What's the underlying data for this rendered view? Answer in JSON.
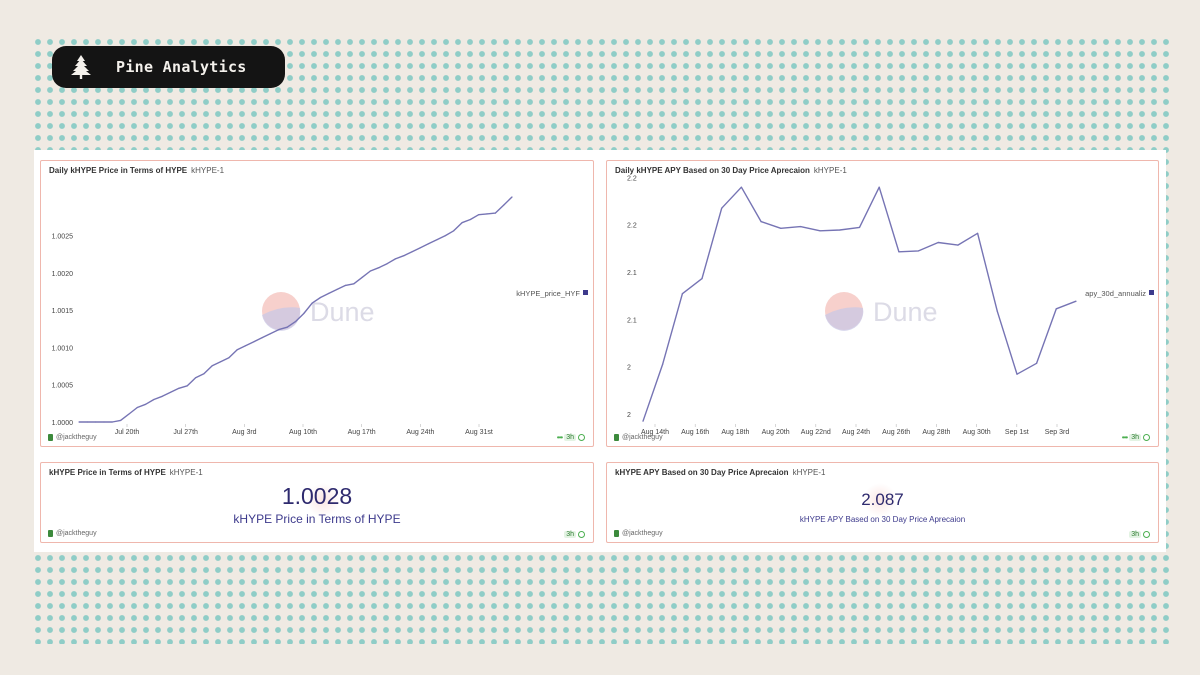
{
  "brand": {
    "name": "Pine Analytics",
    "icon": "pine-tree-icon"
  },
  "colors": {
    "line": "#7674b4",
    "accent": "#3d3a8c",
    "watermark_red": "#f2b7b0",
    "watermark_blue": "#c9c8e6",
    "panel_border": "#efb7ad",
    "dots": "#8fcdc7"
  },
  "panels": {
    "price_chart": {
      "title": "Daily kHYPE Price in Terms of HYPE",
      "subtitle": "kHYPE-1",
      "author": "@jacktheguy",
      "freshness": "3h",
      "legend": "kHYPE_price_HYF",
      "watermark": "Dune"
    },
    "apy_chart": {
      "title": "Daily kHYPE APY Based on 30 Day Price Aprecaion",
      "subtitle": "kHYPE-1",
      "author": "@jacktheguy",
      "freshness": "3h",
      "legend": "apy_30d_annualiz",
      "watermark": "Dune"
    },
    "price_counter": {
      "title": "kHYPE Price in Terms of HYPE",
      "subtitle": "kHYPE-1",
      "author": "@jacktheguy",
      "freshness": "3h",
      "value": "1.0028",
      "label": "kHYPE Price in Terms of HYPE"
    },
    "apy_counter": {
      "title": "kHYPE APY Based on 30 Day Price Aprecaion",
      "subtitle": "kHYPE-1",
      "author": "@jacktheguy",
      "freshness": "3h",
      "value": "2.087",
      "label": "kHYPE APY Based on 30 Day Price Aprecaion"
    }
  },
  "chart_data": [
    {
      "type": "line",
      "title": "Daily kHYPE Price in Terms of HYPE",
      "legend": [
        "kHYPE_price_HYF"
      ],
      "x_ticks": [
        "Jul 20th",
        "Jul 27th",
        "Aug 3rd",
        "Aug 10th",
        "Aug 17th",
        "Aug 24th",
        "Aug 31st"
      ],
      "y_ticks": [
        "1.0000",
        "1.0005",
        "1.0010",
        "1.0015",
        "1.0020",
        "1.0025"
      ],
      "ylim": [
        1.0,
        1.0029
      ],
      "x": [
        "Jul 15",
        "Jul 16",
        "Jul 17",
        "Jul 18",
        "Jul 19",
        "Jul 20",
        "Jul 21",
        "Jul 22",
        "Jul 23",
        "Jul 24",
        "Jul 25",
        "Jul 26",
        "Jul 27",
        "Jul 28",
        "Jul 29",
        "Jul 30",
        "Jul 31",
        "Aug 1",
        "Aug 2",
        "Aug 3",
        "Aug 4",
        "Aug 5",
        "Aug 6",
        "Aug 7",
        "Aug 8",
        "Aug 9",
        "Aug 10",
        "Aug 11",
        "Aug 12",
        "Aug 13",
        "Aug 14",
        "Aug 15",
        "Aug 16",
        "Aug 17",
        "Aug 18",
        "Aug 19",
        "Aug 20",
        "Aug 21",
        "Aug 22",
        "Aug 23",
        "Aug 24",
        "Aug 25",
        "Aug 26",
        "Aug 27",
        "Aug 28",
        "Aug 29",
        "Aug 30",
        "Aug 31",
        "Sep 1",
        "Sep 2",
        "Sep 3",
        "Sep 4",
        "Sep 5"
      ],
      "series": [
        {
          "values": [
            1.0,
            1.0,
            1.0,
            1.0,
            1.0,
            1.00002,
            1.0001,
            1.00018,
            1.00022,
            1.00028,
            1.00032,
            1.00037,
            1.00042,
            1.00045,
            1.00055,
            1.0006,
            1.0007,
            1.00075,
            1.0008,
            1.0009,
            1.00095,
            1.001,
            1.00105,
            1.0011,
            1.00115,
            1.00118,
            1.00125,
            1.00135,
            1.00148,
            1.00155,
            1.0016,
            1.00165,
            1.0017,
            1.00172,
            1.0018,
            1.00188,
            1.00192,
            1.00197,
            1.00203,
            1.00207,
            1.00212,
            1.00217,
            1.00222,
            1.00227,
            1.00232,
            1.00238,
            1.00248,
            1.00252,
            1.00258,
            1.00259,
            1.0026,
            1.0027,
            1.0028
          ]
        }
      ]
    },
    {
      "type": "line",
      "title": "Daily kHYPE APY Based on 30 Day Price Aprecaion",
      "legend": [
        "apy_30d_annualiz"
      ],
      "x_ticks": [
        "Aug 14th",
        "Aug 16th",
        "Aug 18th",
        "Aug 20th",
        "Aug 22nd",
        "Aug 24th",
        "Aug 26th",
        "Aug 28th",
        "Aug 30th",
        "Sep 1st",
        "Sep 3rd"
      ],
      "y_ticks": [
        "2",
        "2",
        "2.1",
        "2.1",
        "2.2",
        "2.2"
      ],
      "ylim": [
        1.96,
        2.245
      ],
      "x": [
        "Aug 13",
        "Aug 14",
        "Aug 15",
        "Aug 16",
        "Aug 17",
        "Aug 18",
        "Aug 19",
        "Aug 20",
        "Aug 21",
        "Aug 22",
        "Aug 23",
        "Aug 24",
        "Aug 25",
        "Aug 26",
        "Aug 27",
        "Aug 28",
        "Aug 29",
        "Aug 30",
        "Aug 31",
        "Sep 1",
        "Sep 2",
        "Sep 3",
        "Sep 4"
      ],
      "series": [
        {
          "values": [
            1.961,
            2.029,
            2.113,
            2.131,
            2.215,
            2.24,
            2.199,
            2.191,
            2.193,
            2.188,
            2.189,
            2.192,
            2.24,
            2.163,
            2.164,
            2.174,
            2.171,
            2.185,
            2.092,
            2.017,
            2.03,
            2.095,
            2.104
          ]
        }
      ]
    }
  ]
}
